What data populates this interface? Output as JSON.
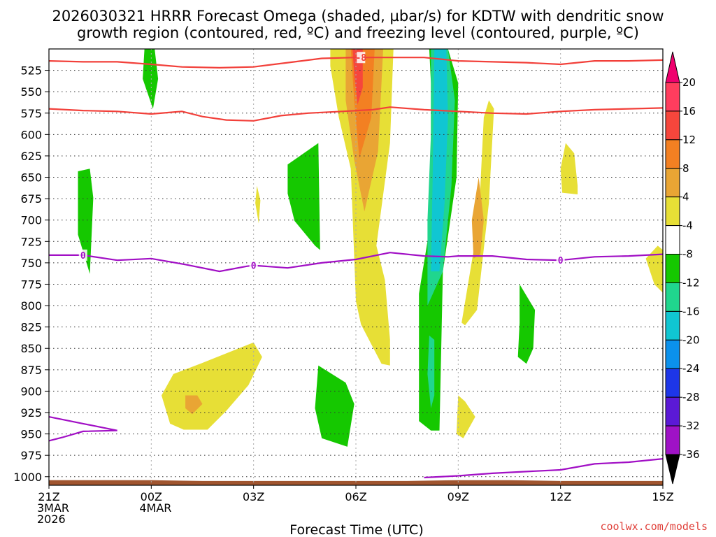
{
  "chart_data": {
    "type": "heatmap",
    "title_line1": "2026030321 HRRR Forecast Omega (shaded, µbar/s) for KDTW with dendritic snow",
    "title_line2": "growth region (contoured, red, ºC) and freezing level (contoured, purple, ºC)",
    "xlabel": "Forecast Time (UTC)",
    "credit": "coolwx.com/models",
    "x_range": [
      21,
      39
    ],
    "y_range": [
      1010,
      500
    ],
    "x_ticks": [
      {
        "h": 21,
        "lines": [
          "21Z",
          "3MAR",
          "2026"
        ]
      },
      {
        "h": 24,
        "lines": [
          "00Z",
          "4MAR"
        ]
      },
      {
        "h": 27,
        "lines": [
          "03Z"
        ]
      },
      {
        "h": 30,
        "lines": [
          "06Z"
        ]
      },
      {
        "h": 33,
        "lines": [
          "09Z"
        ]
      },
      {
        "h": 36,
        "lines": [
          "12Z"
        ]
      },
      {
        "h": 39,
        "lines": [
          "15Z"
        ]
      }
    ],
    "y_ticks": [
      "525",
      "550",
      "575",
      "600",
      "625",
      "650",
      "675",
      "700",
      "725",
      "750",
      "775",
      "800",
      "825",
      "850",
      "875",
      "900",
      "925",
      "950",
      "975",
      "1000"
    ],
    "colorbar": {
      "labels": [
        "20",
        "16",
        "12",
        "8",
        "4",
        "-4",
        "-8",
        "-12",
        "-16",
        "-20",
        "-24",
        "-28",
        "-32",
        "-36"
      ],
      "colors": [
        "#ff3d5e",
        "#f6463c",
        "#f38022",
        "#e9a534",
        "#e7df36",
        "#ffffff",
        "#15c800",
        "#20d68e",
        "#10c6d2",
        "#0b91ec",
        "#1d36e8",
        "#5b19d6",
        "#9f12c6",
        "#a9a9a9"
      ],
      "top_arrow_color": "#f0006e",
      "bottom_arrow_color": "#000000"
    },
    "omega_regions": [
      {
        "color": "#15c800",
        "pts": [
          [
            21.85,
            677
          ],
          [
            21.85,
            643
          ],
          [
            22.2,
            640
          ],
          [
            22.3,
            674
          ],
          [
            22.2,
            763
          ],
          [
            21.85,
            717
          ]
        ]
      },
      {
        "color": "#15c800",
        "pts": [
          [
            23.8,
            500
          ],
          [
            24.1,
            500
          ],
          [
            24.2,
            535
          ],
          [
            24.05,
            570
          ],
          [
            23.75,
            535
          ]
        ]
      },
      {
        "color": "#15c800",
        "pts": [
          [
            24.95,
            692
          ],
          [
            25.3,
            683
          ],
          [
            25.4,
            724
          ],
          [
            25.7,
            749
          ],
          [
            25.9,
            751
          ],
          [
            25.65,
            697
          ],
          [
            26.2,
            650
          ],
          [
            26.4,
            642
          ],
          [
            26.6,
            650
          ]
        ],
        "skip": true
      },
      {
        "color": "#15c800",
        "pts": [
          [
            25.7,
            735
          ],
          [
            25.9,
            740
          ],
          [
            26.1,
            756
          ],
          [
            25.95,
            775
          ],
          [
            25.65,
            755
          ]
        ],
        "skip": true
      },
      {
        "color": "#15c800",
        "pts": [
          [
            28.0,
            635
          ],
          [
            28.9,
            610
          ],
          [
            28.95,
            735
          ],
          [
            28.8,
            730
          ],
          [
            28.2,
            701
          ],
          [
            28.0,
            669
          ]
        ]
      },
      {
        "color": "#15c800",
        "pts": [
          [
            28.9,
            870
          ],
          [
            29.7,
            890
          ],
          [
            29.95,
            915
          ],
          [
            29.75,
            965
          ],
          [
            29.0,
            955
          ],
          [
            28.8,
            920
          ]
        ]
      },
      {
        "color": "#15c800",
        "pts": [
          [
            30.35,
            500
          ],
          [
            31.9,
            500
          ],
          [
            31.95,
            605
          ],
          [
            31.6,
            770
          ],
          [
            31.9,
            940
          ],
          [
            31.85,
            952
          ],
          [
            31.1,
            943
          ],
          [
            30.85,
            928
          ],
          [
            30.85,
            770
          ],
          [
            30.35,
            610
          ]
        ],
        "skip": true
      },
      {
        "color": "#15c800",
        "pts": [
          [
            32.15,
            500
          ],
          [
            32.7,
            500
          ],
          [
            33.0,
            540
          ],
          [
            32.95,
            650
          ],
          [
            32.55,
            760
          ],
          [
            32.45,
            946
          ],
          [
            32.2,
            946
          ],
          [
            31.85,
            935
          ],
          [
            31.85,
            786
          ],
          [
            32.2,
            700
          ],
          [
            32.2,
            540
          ]
        ]
      },
      {
        "color": "#15c800",
        "pts": [
          [
            34.8,
            775
          ],
          [
            35.25,
            805
          ],
          [
            35.2,
            850
          ],
          [
            35.0,
            868
          ],
          [
            34.75,
            860
          ],
          [
            34.8,
            820
          ]
        ]
      },
      {
        "color": "#20d68e",
        "pts": [
          [
            32.2,
            500
          ],
          [
            32.7,
            500
          ],
          [
            32.9,
            560
          ],
          [
            32.8,
            660
          ],
          [
            32.55,
            760
          ],
          [
            32.1,
            800
          ],
          [
            32.1,
            700
          ],
          [
            32.2,
            600
          ]
        ]
      },
      {
        "color": "#10c6d2",
        "pts": [
          [
            32.3,
            500
          ],
          [
            32.65,
            500
          ],
          [
            32.7,
            580
          ],
          [
            32.6,
            680
          ],
          [
            32.45,
            760
          ],
          [
            32.2,
            760
          ],
          [
            32.25,
            650
          ]
        ]
      },
      {
        "color": "#20d68e",
        "pts": [
          [
            32.15,
            835
          ],
          [
            32.3,
            840
          ],
          [
            32.3,
            905
          ],
          [
            32.2,
            920
          ],
          [
            32.1,
            880
          ]
        ]
      },
      {
        "color": "#e7df36",
        "pts": [
          [
            29.25,
            500
          ],
          [
            31.1,
            500
          ],
          [
            31.0,
            610
          ],
          [
            30.6,
            730
          ],
          [
            30.85,
            770
          ],
          [
            31.0,
            840
          ],
          [
            31.0,
            870
          ],
          [
            30.75,
            868
          ],
          [
            30.15,
            822
          ],
          [
            30.0,
            795
          ],
          [
            29.85,
            640
          ],
          [
            29.5,
            580
          ],
          [
            29.25,
            520
          ]
        ]
      },
      {
        "color": "#e7df36",
        "pts": [
          [
            33.1,
            820
          ],
          [
            33.6,
            700
          ],
          [
            33.75,
            580
          ],
          [
            33.9,
            560
          ],
          [
            34.05,
            570
          ],
          [
            33.9,
            680
          ],
          [
            33.55,
            805
          ],
          [
            33.2,
            823
          ]
        ]
      },
      {
        "color": "#e7df36",
        "pts": [
          [
            27.1,
            660
          ],
          [
            27.2,
            677
          ],
          [
            27.15,
            704
          ],
          [
            27.05,
            680
          ]
        ]
      },
      {
        "color": "#e7df36",
        "pts": [
          [
            24.3,
            905
          ],
          [
            24.65,
            880
          ],
          [
            25.5,
            867
          ],
          [
            27.0,
            843
          ],
          [
            27.25,
            860
          ],
          [
            26.85,
            893
          ],
          [
            26.2,
            923
          ],
          [
            25.65,
            945
          ],
          [
            24.95,
            945
          ],
          [
            24.55,
            938
          ]
        ]
      },
      {
        "color": "#e7df36",
        "pts": [
          [
            33.0,
            905
          ],
          [
            33.2,
            912
          ],
          [
            33.5,
            930
          ],
          [
            33.15,
            955
          ],
          [
            32.95,
            950
          ]
        ]
      },
      {
        "color": "#e7df36",
        "pts": [
          [
            36.0,
            640
          ],
          [
            36.15,
            610
          ],
          [
            36.4,
            622
          ],
          [
            36.5,
            660
          ],
          [
            36.5,
            670
          ],
          [
            36.05,
            668
          ]
        ]
      },
      {
        "color": "#e7df36",
        "pts": [
          [
            38.5,
            745
          ],
          [
            38.85,
            730
          ],
          [
            39.0,
            735
          ],
          [
            39.0,
            785
          ],
          [
            38.75,
            775
          ]
        ]
      },
      {
        "color": "#e9a534",
        "pts": [
          [
            29.7,
            500
          ],
          [
            30.8,
            500
          ],
          [
            30.65,
            620
          ],
          [
            30.25,
            690
          ],
          [
            29.95,
            630
          ],
          [
            29.7,
            560
          ]
        ]
      },
      {
        "color": "#e9a534",
        "pts": [
          [
            33.4,
            700
          ],
          [
            33.6,
            650
          ],
          [
            33.75,
            700
          ],
          [
            33.65,
            740
          ],
          [
            33.45,
            745
          ]
        ]
      },
      {
        "color": "#e9a534",
        "pts": [
          [
            25.0,
            905
          ],
          [
            25.35,
            905
          ],
          [
            25.5,
            915
          ],
          [
            25.2,
            927
          ],
          [
            25.0,
            920
          ]
        ]
      },
      {
        "color": "#f38022",
        "pts": [
          [
            29.85,
            500
          ],
          [
            30.55,
            500
          ],
          [
            30.45,
            580
          ],
          [
            30.1,
            628
          ],
          [
            29.95,
            560
          ]
        ]
      },
      {
        "color": "#f6463c",
        "pts": [
          [
            29.9,
            500
          ],
          [
            30.2,
            500
          ],
          [
            30.2,
            545
          ],
          [
            30.05,
            565
          ],
          [
            29.95,
            530
          ]
        ]
      }
    ],
    "dgz_contours": [
      {
        "color": "#f2403a",
        "pts": [
          [
            21,
            514
          ],
          [
            22,
            515
          ],
          [
            23,
            515
          ],
          [
            24,
            518
          ],
          [
            24.9,
            521
          ],
          [
            26,
            522
          ],
          [
            27,
            521
          ],
          [
            28.0,
            516
          ],
          [
            29.0,
            511
          ],
          [
            30,
            510
          ],
          [
            31,
            510
          ],
          [
            32,
            510
          ],
          [
            33.0,
            514
          ],
          [
            34,
            515
          ],
          [
            35.0,
            516
          ],
          [
            36.0,
            518
          ],
          [
            37.0,
            514
          ],
          [
            38.0,
            514
          ],
          [
            39.0,
            513
          ]
        ]
      },
      {
        "color": "#f2403a",
        "pts": [
          [
            21,
            570
          ],
          [
            22.0,
            572
          ],
          [
            23.0,
            573
          ],
          [
            24.0,
            576
          ],
          [
            24.9,
            573
          ],
          [
            25.5,
            579
          ],
          [
            26.2,
            583
          ],
          [
            27.0,
            584
          ],
          [
            27.8,
            578
          ],
          [
            28.6,
            575
          ],
          [
            29.6,
            573
          ],
          [
            30.5,
            571
          ],
          [
            31.0,
            568
          ],
          [
            32,
            571
          ],
          [
            33.0,
            573
          ],
          [
            34.0,
            575
          ],
          [
            35.0,
            576
          ],
          [
            36.0,
            573
          ],
          [
            37.0,
            571
          ],
          [
            38.0,
            570
          ],
          [
            39.0,
            569
          ]
        ]
      }
    ],
    "dgz_label": {
      "text": "-8",
      "h": 30.15,
      "p": 510
    },
    "freezing_contours": [
      {
        "color": "#a10fc5",
        "pts": [
          [
            21,
            741
          ],
          [
            21.5,
            741
          ],
          [
            22.0,
            741
          ],
          [
            23.0,
            747
          ],
          [
            24.0,
            745
          ],
          [
            25.0,
            752
          ],
          [
            26.0,
            760
          ],
          [
            26.8,
            754
          ],
          [
            27.0,
            753
          ],
          [
            28.0,
            756
          ],
          [
            29.0,
            750
          ],
          [
            30.0,
            746
          ],
          [
            31.0,
            738
          ],
          [
            32.0,
            742
          ],
          [
            32.7,
            743
          ],
          [
            33.0,
            742
          ],
          [
            34.0,
            742
          ],
          [
            35.0,
            746
          ],
          [
            36.0,
            747
          ],
          [
            37.0,
            743
          ],
          [
            38.0,
            742
          ],
          [
            39,
            740
          ]
        ]
      },
      {
        "color": "#a10fc5",
        "pts": [
          [
            32.0,
            1001
          ],
          [
            33.0,
            999
          ],
          [
            34.0,
            996
          ],
          [
            35.0,
            994
          ],
          [
            36.0,
            992
          ],
          [
            37.0,
            985
          ],
          [
            38.0,
            983
          ],
          [
            39,
            979
          ]
        ]
      },
      {
        "color": "#a10fc5",
        "pts": [
          [
            21,
            930
          ],
          [
            22.0,
            938
          ],
          [
            23.0,
            946
          ],
          [
            22.0,
            947
          ],
          [
            21.4,
            954
          ],
          [
            21,
            958
          ]
        ]
      }
    ],
    "freezing_labels": [
      {
        "text": "0",
        "h": 22.0,
        "p": 741
      },
      {
        "text": "0",
        "h": 27.0,
        "p": 753
      },
      {
        "text": "0",
        "h": 36.0,
        "p": 747
      }
    ],
    "terrain": {
      "color": "#a0552f",
      "top_hPa": [
        1004,
        1004,
        1004,
        1005,
        1005,
        1005,
        1005,
        1005,
        1004,
        1004,
        1005,
        1005,
        1005
      ],
      "bottom_hPa": 1010
    }
  }
}
